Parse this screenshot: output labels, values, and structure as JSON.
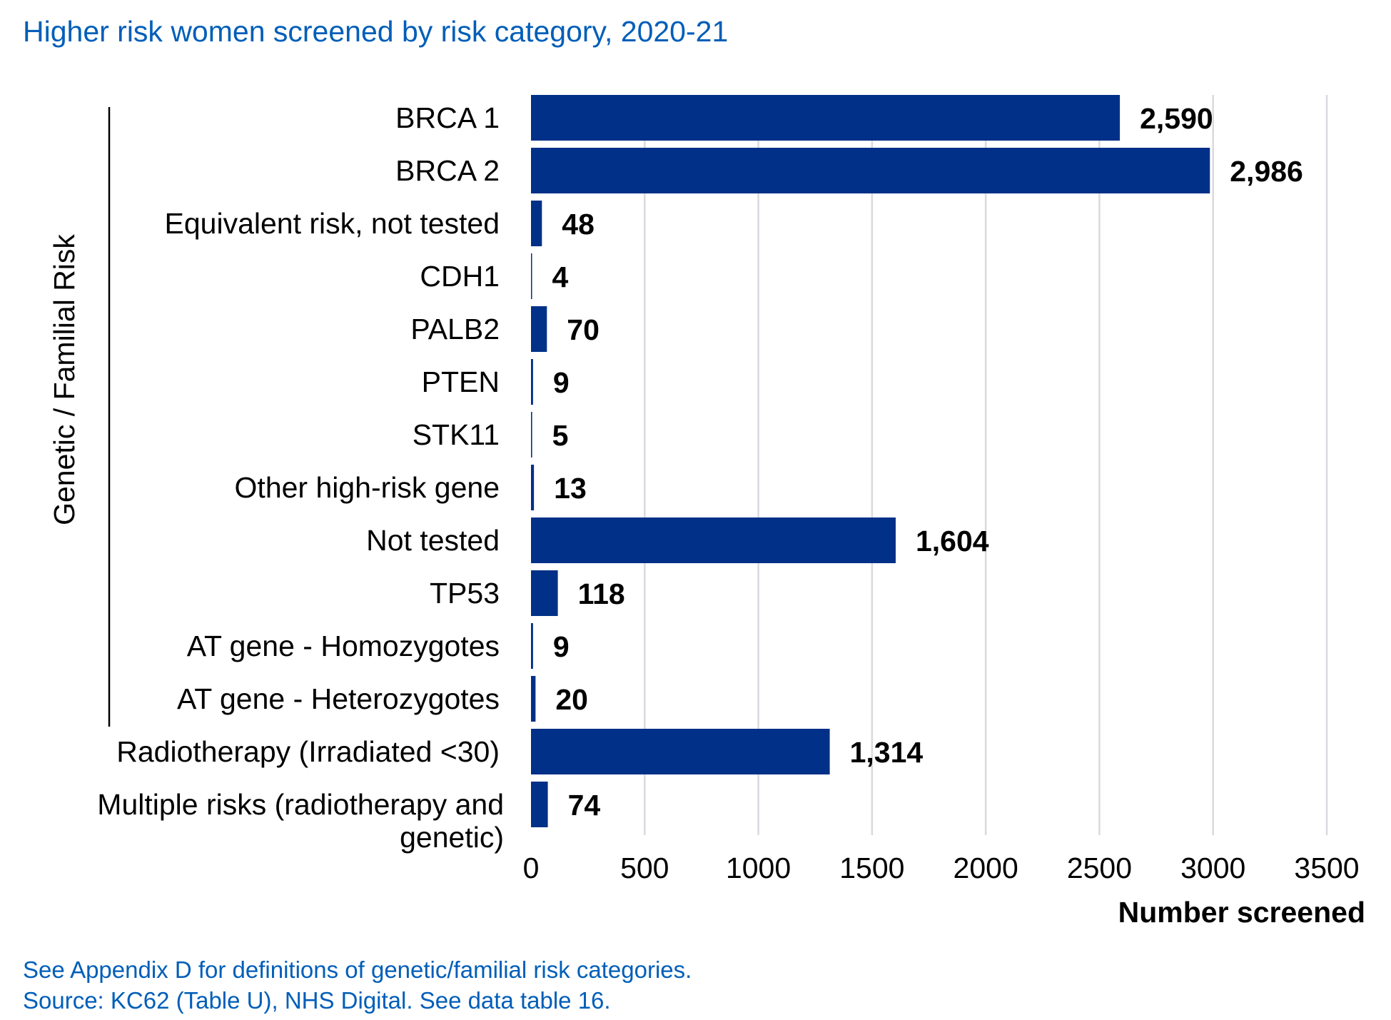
{
  "chart_data": {
    "type": "bar",
    "orientation": "horizontal",
    "title": "Higher risk women screened by risk category, 2020-21",
    "xlabel": "Number screened",
    "xlim": [
      0,
      3500
    ],
    "xticks": [
      "0",
      "500",
      "1000",
      "1500",
      "2000",
      "2500",
      "3000",
      "3500"
    ],
    "grid": true,
    "group_label": "Genetic / Familial Risk",
    "categories": [
      "BRCA 1",
      "BRCA 2",
      "Equivalent risk, not tested",
      "CDH1",
      "PALB2",
      "PTEN",
      "STK11",
      "Other high-risk gene",
      "Not tested",
      "TP53",
      "AT gene - Homozygotes",
      "AT gene - Heterozygotes",
      "Radiotherapy (Irradiated <30)",
      "Multiple risks (radiotherapy and genetic)"
    ],
    "values": [
      2590,
      2986,
      48,
      4,
      70,
      9,
      5,
      13,
      1604,
      118,
      9,
      20,
      1314,
      74
    ],
    "data_labels": [
      "2,590",
      "2,986",
      "48",
      "4",
      "70",
      "9",
      "5",
      "13",
      "1,604",
      "118",
      "9",
      "20",
      "1,314",
      "74"
    ],
    "bar_color": "#003087",
    "grid_color": "#d9d9df"
  },
  "footnotes": [
    "See Appendix D for definitions of genetic/familial risk categories.",
    "Source: KC62 (Table U), NHS Digital. See data table 16."
  ]
}
